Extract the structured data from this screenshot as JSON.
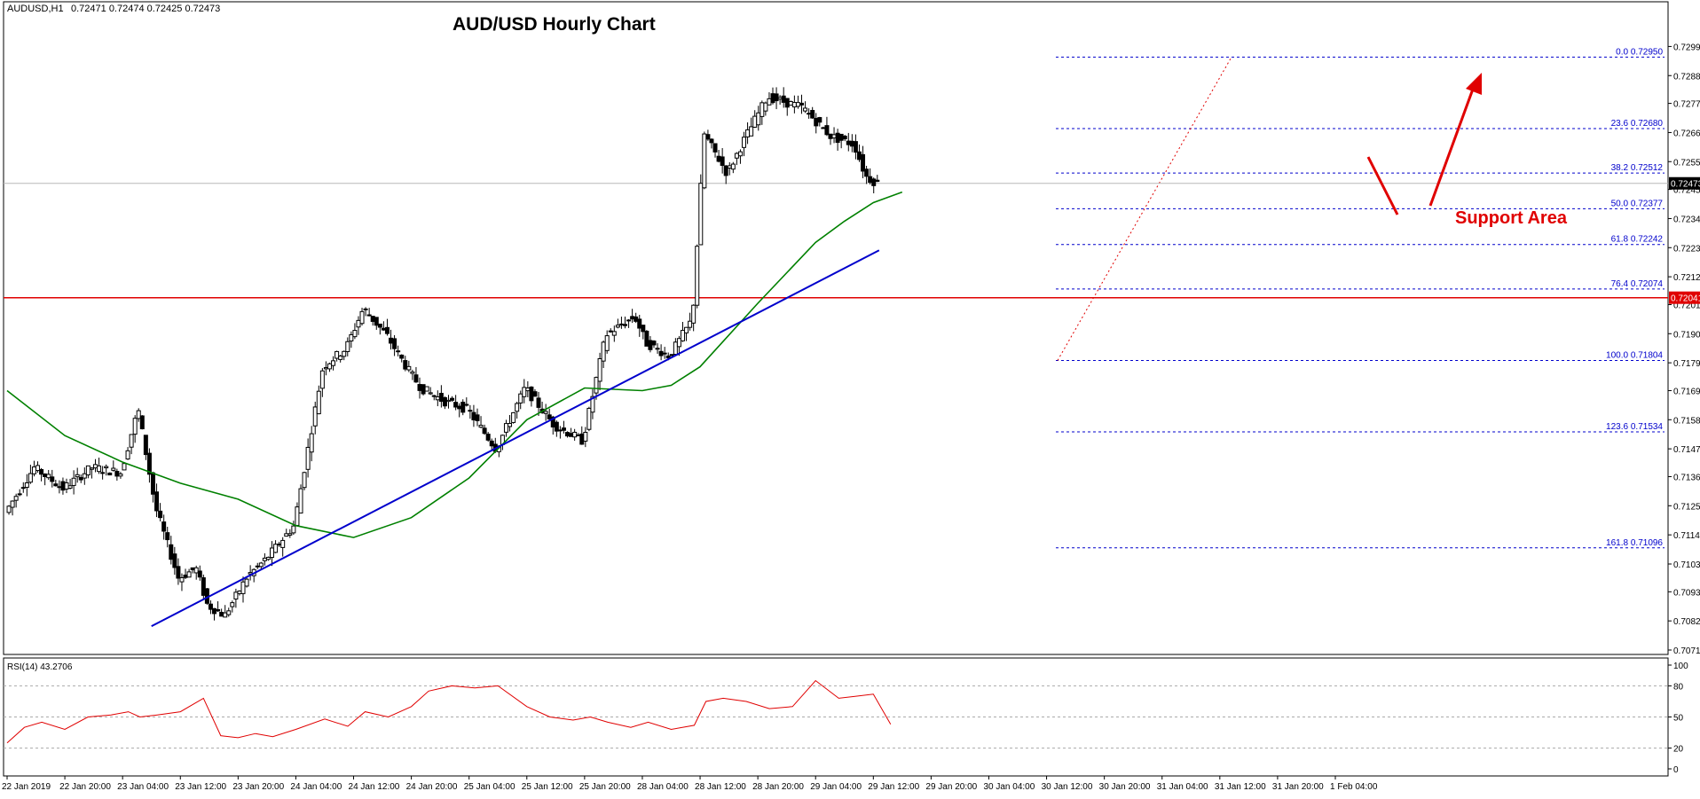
{
  "header": {
    "symbol": "AUDUSD,H1",
    "ohlc": "0.72471 0.72474 0.72425 0.72473"
  },
  "chart_data": {
    "type": "candlestick",
    "title": "AUD/USD Hourly Chart",
    "ylim": [
      0.7071,
      0.73045
    ],
    "y_ticks": [
      "0.72990",
      "0.72880",
      "0.72775",
      "0.72665",
      "0.72555",
      "0.72450",
      "0.72340",
      "0.72230",
      "0.72120",
      "0.72015",
      "0.71905",
      "0.71795",
      "0.71690",
      "0.71580",
      "0.71470",
      "0.71365",
      "0.71255",
      "0.71145",
      "0.71035",
      "0.70930",
      "0.70820",
      "0.70710"
    ],
    "x_ticks": [
      "22 Jan 2019",
      "22 Jan 20:00",
      "23 Jan 04:00",
      "23 Jan 12:00",
      "23 Jan 20:00",
      "24 Jan 04:00",
      "24 Jan 12:00",
      "24 Jan 20:00",
      "25 Jan 04:00",
      "25 Jan 12:00",
      "25 Jan 20:00",
      "28 Jan 04:00",
      "28 Jan 12:00",
      "28 Jan 20:00",
      "29 Jan 04:00",
      "29 Jan 12:00",
      "29 Jan 20:00",
      "30 Jan 04:00",
      "30 Jan 12:00",
      "30 Jan 20:00",
      "31 Jan 04:00",
      "31 Jan 12:00",
      "31 Jan 20:00",
      "1 Feb 04:00"
    ],
    "current_price": "0.72473",
    "resistance": {
      "price": 0.72041,
      "label": "0.72041",
      "color": "#e00000"
    },
    "fibonacci": [
      {
        "level": "0.0",
        "price": 0.7295,
        "label": "0.72950"
      },
      {
        "level": "23.6",
        "price": 0.7268,
        "label": "0.72680"
      },
      {
        "level": "38.2",
        "price": 0.72512,
        "label": "0.72512"
      },
      {
        "level": "50.0",
        "price": 0.72377,
        "label": "0.72377"
      },
      {
        "level": "61.8",
        "price": 0.72242,
        "label": "0.72242"
      },
      {
        "level": "76.4",
        "price": 0.72074,
        "label": "0.72074"
      },
      {
        "level": "100.0",
        "price": 0.71804,
        "label": "0.71804"
      },
      {
        "level": "123.6",
        "price": 0.71534,
        "label": "0.71534"
      },
      {
        "level": "161.8",
        "price": 0.71096,
        "label": "0.71096"
      }
    ],
    "annotation": {
      "text": "Support Area",
      "color": "#e00000"
    },
    "trendline": {
      "color": "#0000cc",
      "from": [
        2.5,
        0.708
      ],
      "to": [
        15.1,
        0.7222
      ]
    },
    "moving_average": {
      "color": "#008000",
      "x": [
        0,
        1,
        2,
        3,
        4,
        5,
        6,
        7,
        8,
        9,
        10,
        11,
        11.5,
        12,
        13,
        14,
        14.5,
        15,
        15.5
      ],
      "y": [
        0.7169,
        0.7152,
        0.7142,
        0.7134,
        0.7128,
        0.7118,
        0.71135,
        0.7121,
        0.7136,
        0.7158,
        0.717,
        0.7169,
        0.7171,
        0.7178,
        0.7202,
        0.7225,
        0.7233,
        0.724,
        0.7244
      ]
    },
    "price_path": {
      "x": [
        0,
        0.5,
        1.0,
        1.5,
        2.0,
        2.3,
        2.6,
        3.0,
        3.3,
        3.5,
        3.8,
        4.2,
        4.5,
        5.0,
        5.5,
        5.9,
        6.2,
        6.6,
        7.0,
        7.2,
        7.6,
        8.0,
        8.5,
        9.0,
        9.5,
        10.0,
        10.4,
        10.9,
        11.1,
        11.5,
        11.9,
        12.1,
        12.5,
        12.8,
        13.2,
        13.8,
        14.3,
        14.7,
        14.9,
        15.1
      ],
      "y": [
        0.7123,
        0.714,
        0.7132,
        0.714,
        0.7138,
        0.7162,
        0.7125,
        0.7098,
        0.7102,
        0.7088,
        0.7084,
        0.7099,
        0.7105,
        0.7118,
        0.7178,
        0.7185,
        0.72,
        0.719,
        0.7176,
        0.717,
        0.7165,
        0.7162,
        0.7147,
        0.717,
        0.7156,
        0.715,
        0.719,
        0.7197,
        0.7187,
        0.7182,
        0.7196,
        0.7266,
        0.7251,
        0.7264,
        0.728,
        0.7276,
        0.7265,
        0.7262,
        0.725,
        0.72473
      ]
    },
    "rsi": {
      "label": "RSI(14) 43.2706",
      "ticks": [
        "100",
        "80",
        "50",
        "20",
        "0"
      ],
      "levels": [
        80,
        50,
        20
      ],
      "color": "#e00000",
      "x": [
        0,
        0.3,
        0.6,
        1.0,
        1.4,
        1.8,
        2.1,
        2.3,
        2.6,
        3.0,
        3.4,
        3.7,
        4.0,
        4.3,
        4.6,
        5.0,
        5.5,
        5.9,
        6.2,
        6.6,
        7.0,
        7.3,
        7.7,
        8.1,
        8.5,
        9.0,
        9.4,
        9.8,
        10.1,
        10.4,
        10.8,
        11.1,
        11.5,
        11.9,
        12.1,
        12.4,
        12.8,
        13.2,
        13.6,
        14.0,
        14.4,
        14.7,
        15.0,
        15.3
      ],
      "y": [
        25,
        40,
        45,
        38,
        50,
        52,
        55,
        50,
        52,
        55,
        68,
        32,
        30,
        34,
        31,
        38,
        48,
        41,
        55,
        50,
        60,
        75,
        80,
        78,
        80,
        60,
        50,
        47,
        50,
        45,
        40,
        45,
        38,
        42,
        65,
        68,
        65,
        58,
        60,
        85,
        68,
        70,
        72,
        43
      ]
    }
  }
}
